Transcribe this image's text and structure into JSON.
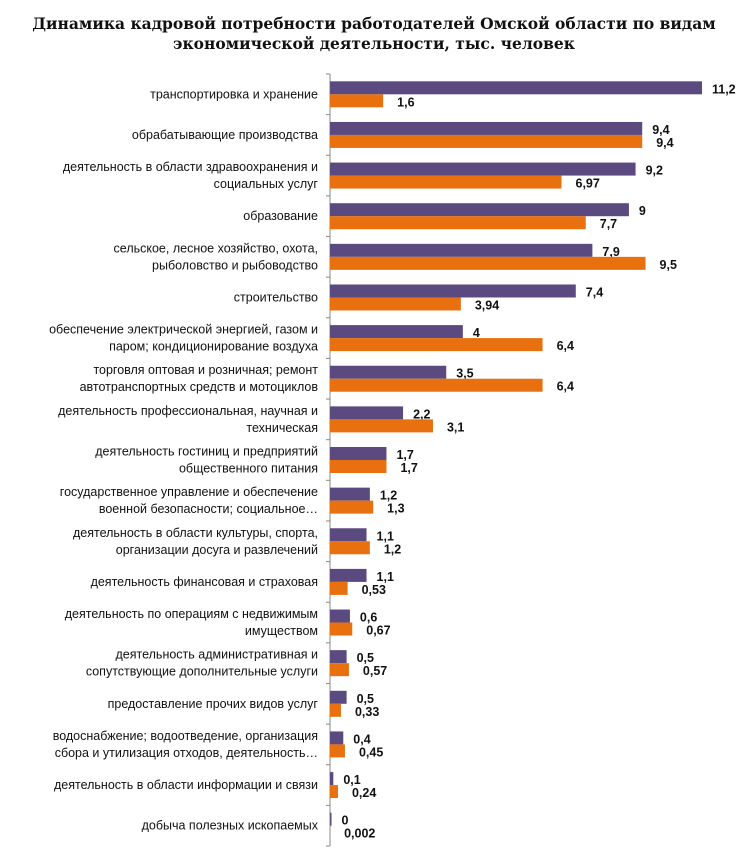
{
  "chart_data": {
    "type": "bar",
    "orientation": "horizontal",
    "title": "Динамика кадровой потребности работодателей Омской области по видам экономической деятельности, тыс. человек",
    "title_lines": [
      "Динамика кадровой потребности работодателей Омской области по видам",
      "экономической деятельности, тыс. человек"
    ],
    "xlim": [
      0,
      11.2
    ],
    "grid": false,
    "legend": "none",
    "categories": [
      [
        "транспортировка и хранение"
      ],
      [
        "обрабатывающие производства"
      ],
      [
        "деятельность в области здравоохранения и",
        "социальных услуг"
      ],
      [
        "образование"
      ],
      [
        "сельское, лесное хозяйство, охота,",
        "рыболовство и рыбоводство"
      ],
      [
        "строительство"
      ],
      [
        "обеспечение электрической энергией, газом и",
        "паром; кондиционирование воздуха"
      ],
      [
        "торговля оптовая и розничная; ремонт",
        "автотранспортных средств и мотоциклов"
      ],
      [
        "деятельность профессиональная, научная и",
        "техническая"
      ],
      [
        "деятельность гостиниц и предприятий",
        "общественного питания"
      ],
      [
        "государственное управление и обеспечение",
        "военной безопасности; социальное…"
      ],
      [
        "деятельность в области культуры, спорта,",
        "организации досуга и развлечений"
      ],
      [
        "деятельность финансовая и страховая"
      ],
      [
        "деятельность по операциям с недвижимым",
        "имуществом"
      ],
      [
        "деятельность административная и",
        "сопутствующие дополнительные услуги"
      ],
      [
        "предоставление прочих видов услуг"
      ],
      [
        "водоснабжение; водоотведение, организация",
        "сбора и утилизация отходов, деятельность…"
      ],
      [
        "деятельность в области информации и связи"
      ],
      [
        "добыча полезных ископаемых"
      ]
    ],
    "series": [
      {
        "color": "#5b4a80",
        "values": [
          11.2,
          9.4,
          9.2,
          9,
          7.9,
          7.4,
          4,
          3.5,
          2.2,
          1.7,
          1.2,
          1.1,
          1.1,
          0.6,
          0.5,
          0.5,
          0.4,
          0.1,
          0
        ],
        "labels": [
          "11,2",
          "9,4",
          "9,2",
          "9",
          "7,9",
          "7,4",
          "4",
          "3,5",
          "2,2",
          "1,7",
          "1,2",
          "1,1",
          "1,1",
          "0,6",
          "0,5",
          "0,5",
          "0,4",
          "0,1",
          "0"
        ]
      },
      {
        "color": "#e8700f",
        "values": [
          1.6,
          9.4,
          6.97,
          7.7,
          9.5,
          3.94,
          6.4,
          6.4,
          3.1,
          1.7,
          1.3,
          1.2,
          0.53,
          0.67,
          0.57,
          0.33,
          0.45,
          0.24,
          0.002
        ],
        "labels": [
          "1,6",
          "9,4",
          "6,97",
          "7,7",
          "9,5",
          "3,94",
          "6,4",
          "6,4",
          "3,1",
          "1,7",
          "1,3",
          "1,2",
          "0,53",
          "0,67",
          "0,57",
          "0,33",
          "0,45",
          "0,24",
          "0,002"
        ]
      }
    ]
  }
}
